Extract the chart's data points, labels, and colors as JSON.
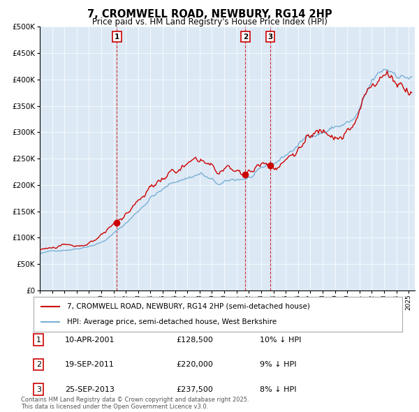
{
  "title": "7, CROMWELL ROAD, NEWBURY, RG14 2HP",
  "subtitle": "Price paid vs. HM Land Registry's House Price Index (HPI)",
  "legend_red": "7, CROMWELL ROAD, NEWBURY, RG14 2HP (semi-detached house)",
  "legend_blue": "HPI: Average price, semi-detached house, West Berkshire",
  "transactions": [
    {
      "num": 1,
      "date": "10-APR-2001",
      "price": 128500,
      "pct": "10%",
      "dir": "↓",
      "x_year": 2001.27
    },
    {
      "num": 2,
      "date": "19-SEP-2011",
      "price": 220000,
      "pct": "9%",
      "dir": "↓",
      "x_year": 2011.72
    },
    {
      "num": 3,
      "date": "25-SEP-2013",
      "price": 237500,
      "pct": "8%",
      "dir": "↓",
      "x_year": 2013.73
    }
  ],
  "footnote": "Contains HM Land Registry data © Crown copyright and database right 2025.\nThis data is licensed under the Open Government Licence v3.0.",
  "plot_bg": "#dce9f5",
  "red_color": "#cc0000",
  "blue_color": "#7aafd4",
  "ylim": [
    0,
    500000
  ],
  "yticks": [
    0,
    50000,
    100000,
    150000,
    200000,
    250000,
    300000,
    350000,
    400000,
    450000,
    500000
  ],
  "xmin": 1995.0,
  "xmax": 2025.5
}
